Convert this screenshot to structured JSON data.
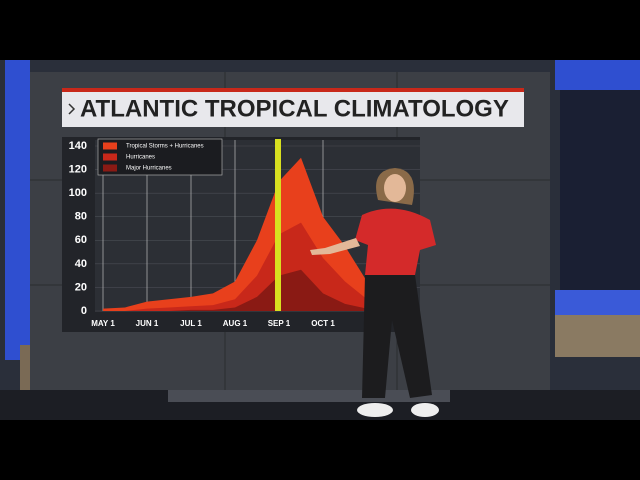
{
  "chart_data": {
    "type": "area",
    "title": "ATLANTIC TROPICAL CLIMATOLOGY",
    "categories": [
      "MAY 1",
      null,
      "JUN 1",
      null,
      "JUL 1",
      null,
      "AUG 1",
      null,
      "SEP 1",
      null,
      "OCT 1",
      null,
      null,
      null,
      null
    ],
    "series": [
      {
        "name": "Tropical Storms + Hurricanes",
        "color": "#e8401c",
        "values": [
          2,
          3,
          8,
          10,
          12,
          15,
          25,
          60,
          110,
          130,
          80,
          55,
          25,
          10,
          3
        ]
      },
      {
        "name": "Hurricanes",
        "color": "#c8281a",
        "values": [
          0,
          0,
          2,
          3,
          4,
          5,
          10,
          30,
          65,
          75,
          45,
          25,
          10,
          4,
          1
        ]
      },
      {
        "name": "Major Hurricanes",
        "color": "#8a1a14",
        "values": [
          0,
          0,
          0,
          0,
          1,
          1,
          3,
          12,
          30,
          35,
          15,
          6,
          2,
          1,
          0
        ]
      }
    ],
    "ylim": [
      0,
      140
    ],
    "yticks": [
      0,
      20,
      40,
      60,
      80,
      100,
      120,
      140
    ],
    "grid": true
  }
}
